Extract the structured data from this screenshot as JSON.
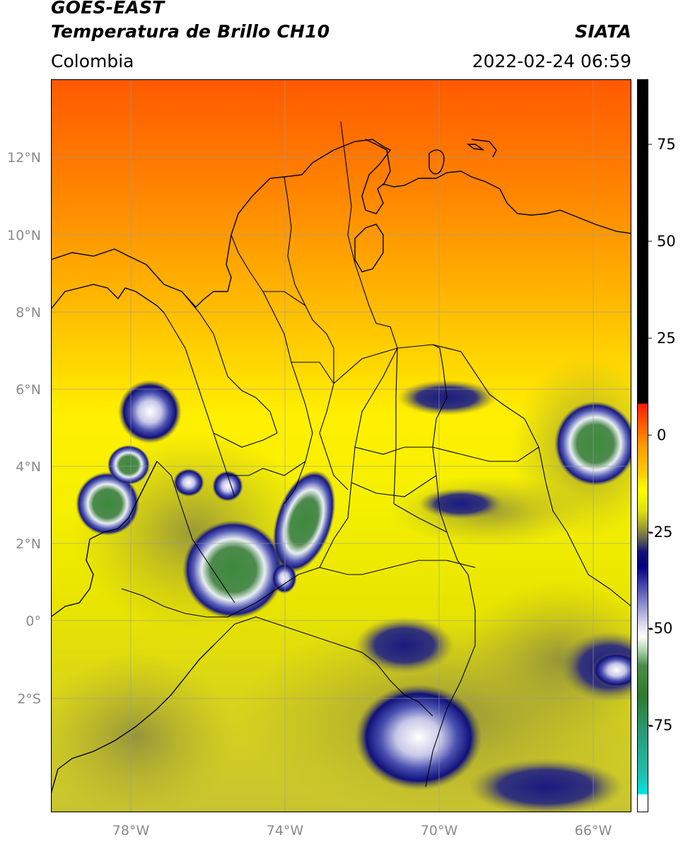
{
  "header": {
    "satellite": "GOES-EAST",
    "product": "Temperatura de Brillo CH10",
    "source": "SIATA",
    "region": "Colombia",
    "datetime": "2022-02-24 06:59"
  },
  "map": {
    "lat_labels": [
      "12°N",
      "10°N",
      "8°N",
      "6°N",
      "4°N",
      "2°N",
      "0°",
      "2°S"
    ],
    "lon_labels": [
      "78°W",
      "74°W",
      "70°W",
      "66°W"
    ],
    "extent": {
      "lon_min": -80,
      "lon_max": -65,
      "lat_min": -5,
      "lat_max": 14
    },
    "grid": true
  },
  "colorbar": {
    "tick_labels": [
      "75",
      "50",
      "25",
      "0",
      "-25",
      "-50",
      "-75"
    ],
    "range": [
      -100,
      90
    ],
    "colors": {
      "hot": "#000000",
      "red": "#ff1a00",
      "orange": "#ff8a00",
      "yellow": "#ffff00",
      "olive": "#7a7a3a",
      "navy": "#000080",
      "white": "#ffffff",
      "green": "#2f7a2f",
      "teal": "#20c0b0",
      "cyan": "#00e5e5"
    }
  }
}
